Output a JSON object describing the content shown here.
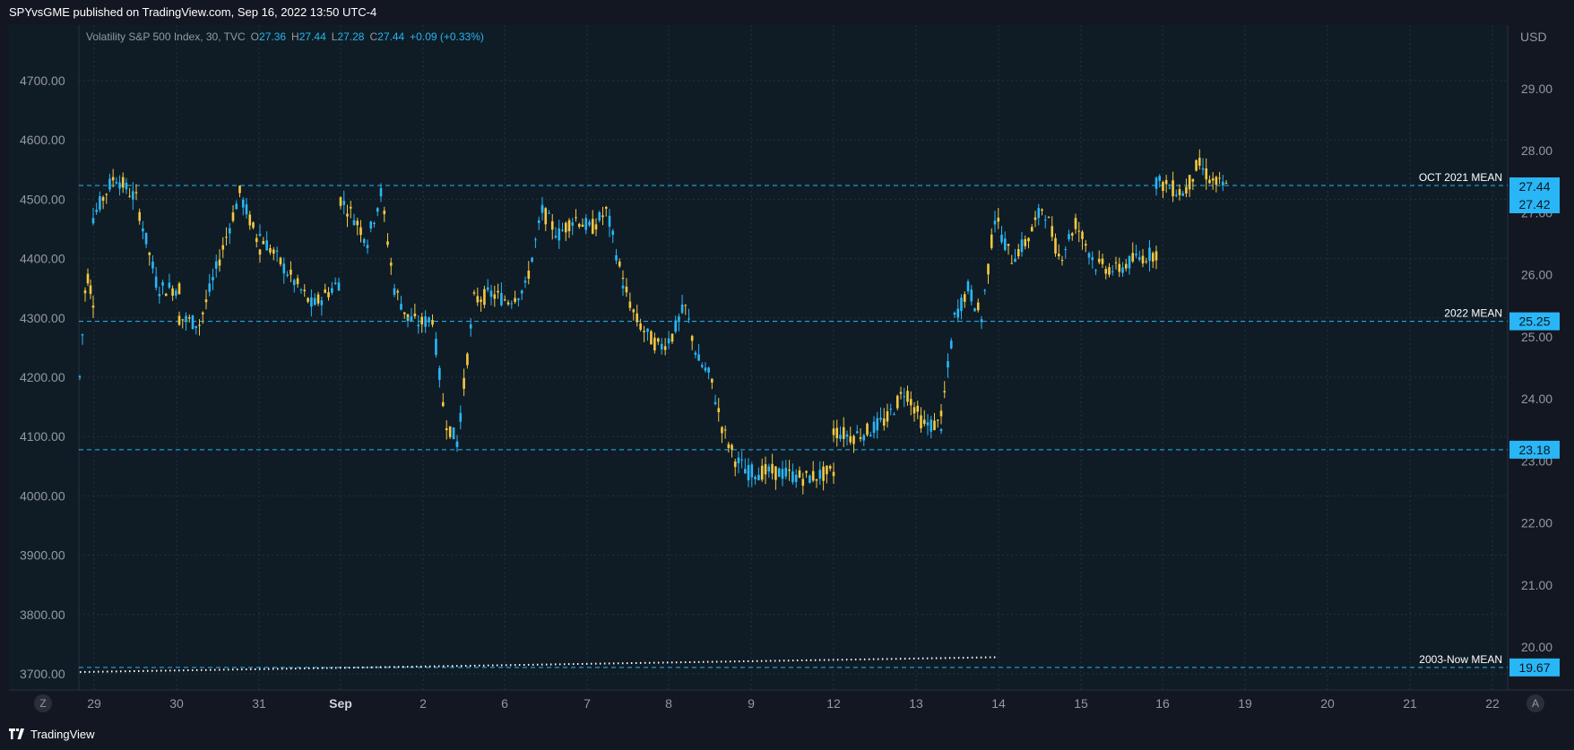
{
  "header": {
    "published_text": "SPYvsGME published on TradingView.com, Sep 16, 2022 13:50 UTC-4"
  },
  "footer": {
    "brand": "TradingView"
  },
  "legend": {
    "symbol": "Volatility S&P 500 Index, 30, TVC",
    "open_label": "O",
    "open": "27.36",
    "high_label": "H",
    "high": "27.44",
    "low_label": "L",
    "low": "27.28",
    "close_label": "C",
    "close": "27.44",
    "change": "+0.09 (+0.33%)"
  },
  "buttons": {
    "left": "Z",
    "right": "A"
  },
  "colors": {
    "background": "#0f1c26",
    "grid": "#233040",
    "up": "#29b6f6",
    "down": "#f5c842",
    "level_line": "#29b6f6",
    "dotted_line": "#ffffff"
  },
  "chart_data": {
    "type": "candlestick",
    "left_axis": {
      "ticks": [
        4700,
        4600,
        4500,
        4400,
        4300,
        4200,
        4100,
        4000,
        3900,
        3800,
        3700
      ],
      "tick_labels": [
        "4700.00",
        "4600.00",
        "4500.00",
        "4400.00",
        "4300.00",
        "4200.00",
        "4100.00",
        "4000.00",
        "3900.00",
        "3800.00",
        "3700.00"
      ],
      "range": [
        3680,
        4700
      ]
    },
    "right_axis": {
      "unit": "USD",
      "ticks": [
        29,
        28,
        27,
        26,
        25,
        24,
        23,
        22,
        21,
        20
      ],
      "tick_labels": [
        "29.00",
        "28.00",
        "27.00",
        "26.00",
        "25.00",
        "24.00",
        "23.00",
        "22.00",
        "21.00",
        "20.00"
      ],
      "range": [
        19.4,
        29.4
      ]
    },
    "x_axis": {
      "tick_labels": [
        "29",
        "30",
        "31",
        "Sep",
        "2",
        "6",
        "7",
        "8",
        "9",
        "12",
        "13",
        "14",
        "15",
        "16",
        "19",
        "20",
        "21",
        "22"
      ]
    },
    "levels": [
      {
        "label": "OCT 2021 MEAN",
        "value": 27.44,
        "value_label": "27.44"
      },
      {
        "label": "",
        "value": 27.42,
        "value_label": "27.42"
      },
      {
        "label": "2022 MEAN",
        "value": 25.25,
        "value_label": "25.25"
      },
      {
        "label": "",
        "value": 23.18,
        "value_label": "23.18"
      },
      {
        "label": "2003-Now MEAN",
        "value": 19.67,
        "value_label": "19.67"
      }
    ],
    "sessions": [
      {
        "day": "29",
        "start": 4300,
        "end": 4330,
        "high": 4380,
        "low": 4200
      },
      {
        "day": "29b",
        "start": 4470,
        "end": 4420,
        "high": 4530,
        "low": 4400
      },
      {
        "day": "30",
        "start": 4420,
        "end": 4290,
        "high": 4440,
        "low": 4280
      },
      {
        "day": "31",
        "start": 4400,
        "end": 4320,
        "high": 4530,
        "low": 4300
      },
      {
        "day": "Sep",
        "start": 4470,
        "end": 4470,
        "high": 4520,
        "low": 4420
      },
      {
        "day": "2",
        "start": 4390,
        "end": 4290,
        "high": 4410,
        "low": 4090
      },
      {
        "day": "6",
        "start": 4120,
        "end": 4340,
        "high": 4390,
        "low": 4090
      },
      {
        "day": "7",
        "start": 4330,
        "end": 4470,
        "high": 4570,
        "low": 4330
      },
      {
        "day": "7b",
        "start": 4470,
        "end": 4430,
        "high": 4490,
        "low": 4380
      },
      {
        "day": "8",
        "start": 4360,
        "end": 4260,
        "high": 4380,
        "low": 4220
      },
      {
        "day": "9",
        "start": 4320,
        "end": 4200,
        "high": 4360,
        "low": 4120
      },
      {
        "day": "12",
        "start": 4090,
        "end": 4040,
        "high": 4100,
        "low": 4030
      },
      {
        "day": "13",
        "start": 4100,
        "end": 4130,
        "high": 4200,
        "low": 4100
      },
      {
        "day": "13b",
        "start": 4130,
        "end": 4300,
        "high": 4340,
        "low": 4120
      },
      {
        "day": "14",
        "start": 4400,
        "end": 4470,
        "high": 4610,
        "low": 4380
      },
      {
        "day": "15",
        "start": 4460,
        "end": 4390,
        "high": 4540,
        "low": 4340
      },
      {
        "day": "16",
        "start": 4360,
        "end": 4400,
        "high": 4460,
        "low": 4320
      },
      {
        "day": "16b",
        "start": 4530,
        "end": 4520,
        "high": 4640,
        "low": 4500
      }
    ],
    "dotted_line": {
      "from_value": 3700,
      "to_value": 3725
    }
  }
}
